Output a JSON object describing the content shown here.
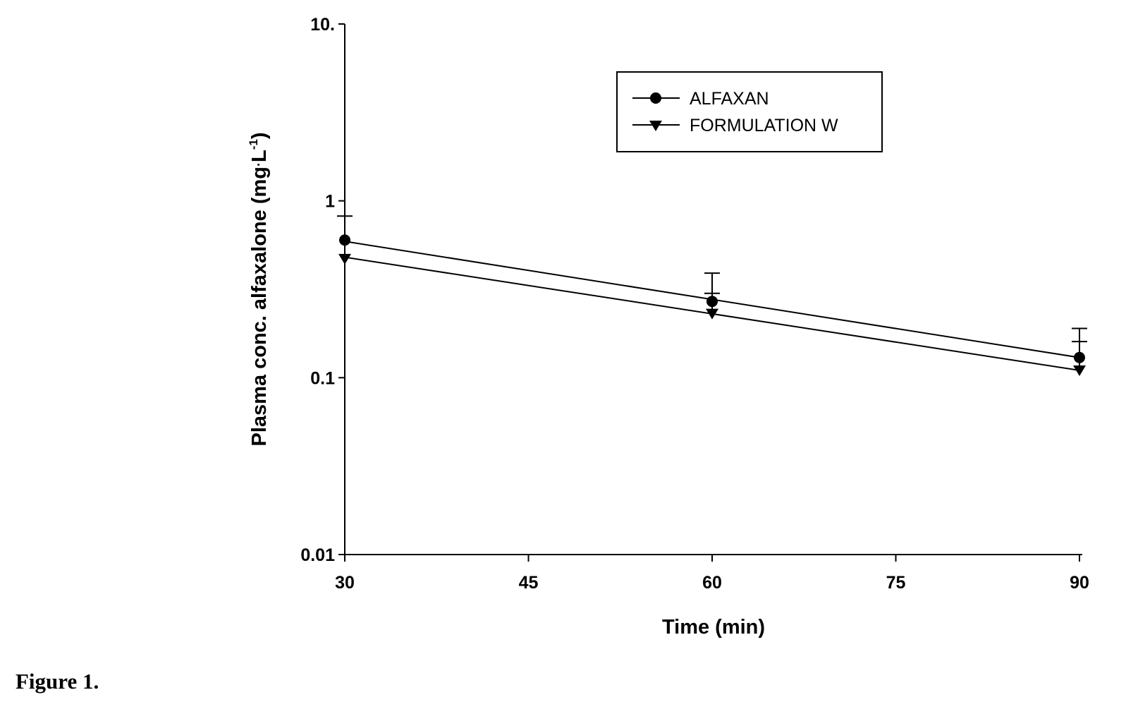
{
  "caption": "Figure 1.",
  "chart_data": {
    "type": "line",
    "xlabel": "Time (min)",
    "ylabel": "Plasma conc. alfaxalone (mg.L-1)",
    "ylabel_main": "Plasma conc. alfaxalone (mg",
    "ylabel_mid": "L",
    "ylabel_sup": "-1",
    "ylabel_end": ")",
    "xlim": [
      30,
      90
    ],
    "ylim": [
      0.01,
      10
    ],
    "yscale": "log",
    "grid": false,
    "legend_position": "top-right",
    "x_ticks": [
      30,
      45,
      60,
      75,
      90
    ],
    "x_tick_labels": [
      "30",
      "45",
      "60",
      "75",
      "90"
    ],
    "y_ticks": [
      0.01,
      0.1,
      1,
      10
    ],
    "y_tick_labels": [
      "0.01",
      "0.1",
      "1",
      "10."
    ],
    "x": [
      30,
      60,
      90
    ],
    "series": [
      {
        "name": "ALFAXAN",
        "marker": "circle",
        "values": [
          0.6,
          0.27,
          0.13
        ],
        "error_upper": [
          0.82,
          0.39,
          0.19
        ],
        "fit_line": [
          0.59,
          0.13
        ]
      },
      {
        "name": "FORMULATION W",
        "marker": "triangle-down",
        "values": [
          0.47,
          0.23,
          0.11
        ],
        "error_upper": [
          null,
          0.3,
          0.16
        ],
        "fit_line": [
          0.48,
          0.11
        ]
      }
    ]
  }
}
